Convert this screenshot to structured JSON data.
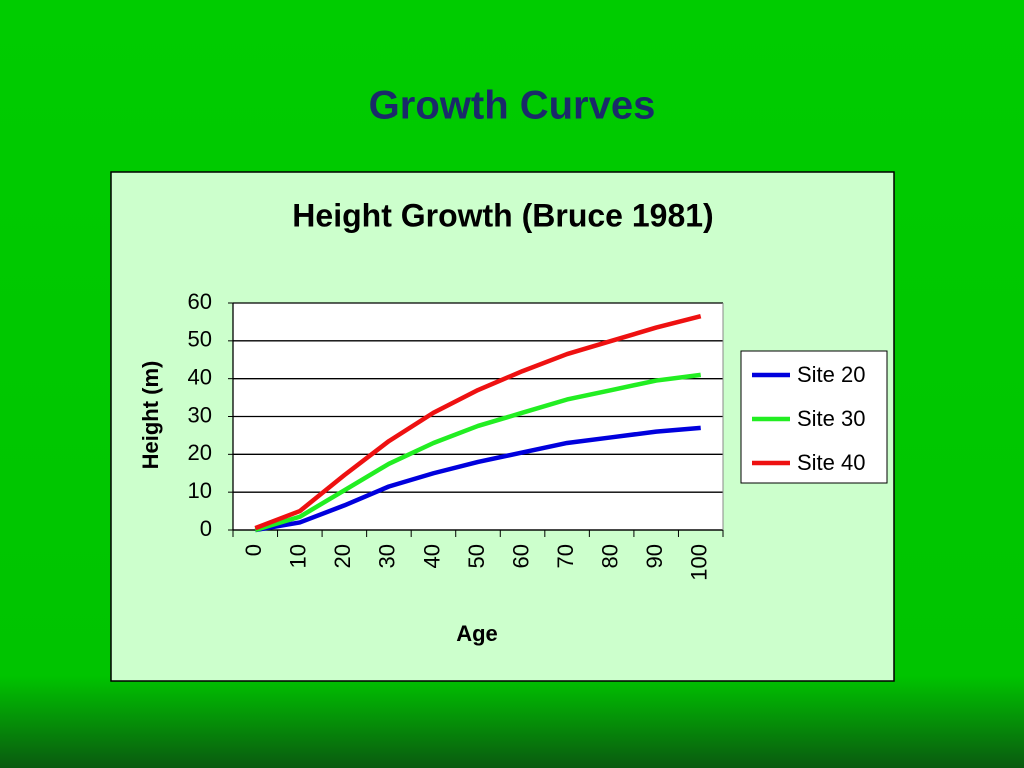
{
  "slide_title": "Growth Curves",
  "chart_data": {
    "type": "line",
    "title": "Height Growth (Bruce 1981)",
    "x_label": "Age",
    "y_label": "Height (m)",
    "categories": [
      "0",
      "10",
      "20",
      "30",
      "40",
      "50",
      "60",
      "70",
      "80",
      "90",
      "100"
    ],
    "series": [
      {
        "name": "Site 20",
        "color": "#0000dd",
        "values": [
          0,
          2,
          6.5,
          11.5,
          15,
          18,
          20.5,
          23,
          24.5,
          26,
          27
        ]
      },
      {
        "name": "Site 30",
        "color": "#22ee22",
        "values": [
          0,
          3.5,
          10.5,
          17.5,
          23,
          27.5,
          31,
          34.5,
          37,
          39.5,
          41
        ]
      },
      {
        "name": "Site 40",
        "color": "#ee1111",
        "values": [
          0.5,
          5,
          14.5,
          23.5,
          31,
          37,
          42,
          46.5,
          50,
          53.5,
          56.5
        ]
      }
    ],
    "ylim": [
      0,
      60
    ],
    "yticks": [
      0,
      10,
      20,
      30,
      40,
      50,
      60
    ],
    "grid": true,
    "legend": "right"
  }
}
